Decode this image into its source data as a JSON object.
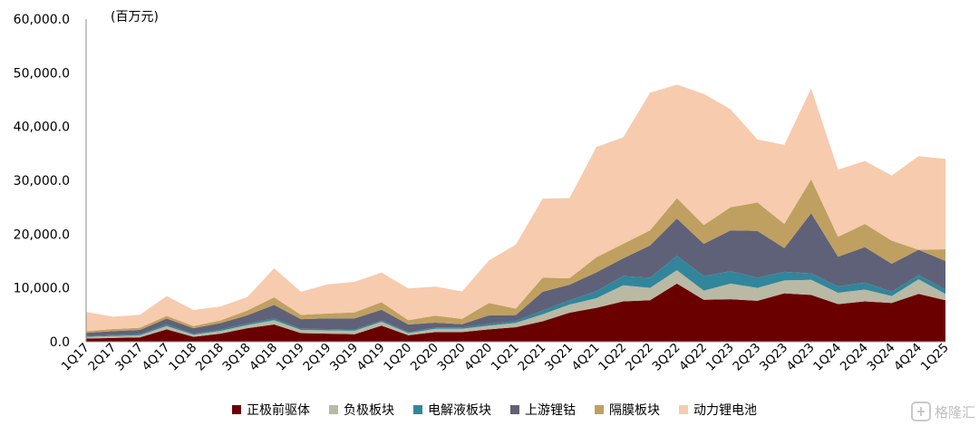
{
  "chart_data": {
    "type": "area",
    "stacked": true,
    "unit_label": "(百万元)",
    "ylim": [
      0,
      60000
    ],
    "yticks": [
      0,
      10000,
      20000,
      30000,
      40000,
      50000,
      60000
    ],
    "ytick_labels": [
      "0.0",
      "10,000.0",
      "20,000.0",
      "30,000.0",
      "40,000.0",
      "50,000.0",
      "60,000.0"
    ],
    "categories": [
      "1Q17",
      "2Q17",
      "3Q17",
      "4Q17",
      "1Q18",
      "2Q18",
      "3Q18",
      "4Q18",
      "1Q19",
      "2Q19",
      "3Q19",
      "4Q19",
      "1Q20",
      "2Q20",
      "3Q20",
      "4Q20",
      "1Q21",
      "2Q21",
      "3Q21",
      "4Q21",
      "1Q22",
      "2Q22",
      "3Q22",
      "4Q22",
      "1Q23",
      "2Q23",
      "3Q23",
      "4Q23",
      "1Q24",
      "2Q24",
      "3Q24",
      "4Q24",
      "1Q25"
    ],
    "tick_labels": [
      "1Q17",
      "",
      "2Q17",
      "",
      "3Q17",
      "",
      "4Q17",
      "",
      "1Q18",
      "",
      "2Q18",
      "",
      "3Q18",
      "",
      "4Q18",
      "",
      "1Q19",
      "",
      "2Q19",
      "",
      "3Q19",
      "",
      "4Q19",
      "",
      "1Q20",
      "",
      "2Q20",
      "",
      "3Q20",
      "",
      "4Q20",
      "",
      "1Q21",
      "",
      "2Q21",
      "",
      "3Q21",
      "",
      "4Q21",
      "",
      "1Q22",
      "",
      "2Q22",
      "",
      "3Q22",
      "",
      "4Q22",
      "",
      "1Q23",
      "",
      "2Q23",
      "",
      "3Q23",
      "",
      "4Q23",
      "",
      "1Q24",
      "",
      "2Q24",
      "",
      "3Q24",
      "",
      "4Q24",
      "",
      "1Q25"
    ],
    "tick_count": 65,
    "series": [
      {
        "name": "正极前驱体",
        "color": "#6b0000",
        "values": [
          600,
          700,
          800,
          2300,
          900,
          1500,
          2500,
          3200,
          1600,
          1500,
          1400,
          3000,
          1200,
          1800,
          1800,
          2300,
          2700,
          3800,
          5400,
          6300,
          7500,
          7700,
          10800,
          7800,
          7900,
          7600,
          9000,
          8700,
          7000,
          7500,
          7200,
          8900,
          7700
        ]
      },
      {
        "name": "负极板块",
        "color": "#b9b9a4",
        "values": [
          300,
          350,
          400,
          600,
          400,
          500,
          600,
          800,
          600,
          600,
          650,
          700,
          400,
          600,
          600,
          700,
          800,
          1300,
          1500,
          1800,
          3000,
          2300,
          2500,
          1700,
          2900,
          2400,
          2400,
          2800,
          2100,
          2200,
          1300,
          2700,
          1200
        ]
      },
      {
        "name": "电解液板块",
        "color": "#31869b",
        "values": [
          150,
          200,
          200,
          300,
          200,
          250,
          300,
          350,
          200,
          250,
          200,
          250,
          200,
          250,
          250,
          300,
          350,
          700,
          800,
          1300,
          1700,
          1900,
          2700,
          2700,
          2300,
          1900,
          1600,
          1200,
          1200,
          1300,
          800,
          800,
          800
        ]
      },
      {
        "name": "上游锂钴",
        "color": "#5f6178",
        "values": [
          600,
          700,
          800,
          1100,
          1000,
          1200,
          1500,
          2500,
          1800,
          2000,
          2100,
          2000,
          1400,
          900,
          600,
          1600,
          1100,
          3500,
          2900,
          3500,
          3300,
          6000,
          6900,
          6000,
          7600,
          8700,
          4400,
          11200,
          5500,
          6600,
          5200,
          4700,
          5300
        ]
      },
      {
        "name": "隔膜板块",
        "color": "#c0a060",
        "values": [
          300,
          400,
          400,
          500,
          400,
          500,
          900,
          1400,
          800,
          900,
          1100,
          1400,
          800,
          1300,
          1000,
          2300,
          1200,
          2600,
          1200,
          2800,
          2700,
          2800,
          3800,
          3500,
          4300,
          5300,
          4500,
          6300,
          3700,
          4300,
          4300,
          0,
          2200
        ]
      },
      {
        "name": "动力锂电池",
        "color": "#f7cbae",
        "values": [
          3600,
          2300,
          2400,
          3700,
          3000,
          2600,
          2500,
          5400,
          4300,
          5400,
          5700,
          5500,
          5900,
          5400,
          5100,
          7900,
          11900,
          14700,
          14900,
          20500,
          19800,
          25600,
          21100,
          24400,
          18200,
          11700,
          14700,
          16900,
          12500,
          11700,
          12100,
          17400,
          16800
        ]
      }
    ]
  },
  "watermark": "格隆汇"
}
